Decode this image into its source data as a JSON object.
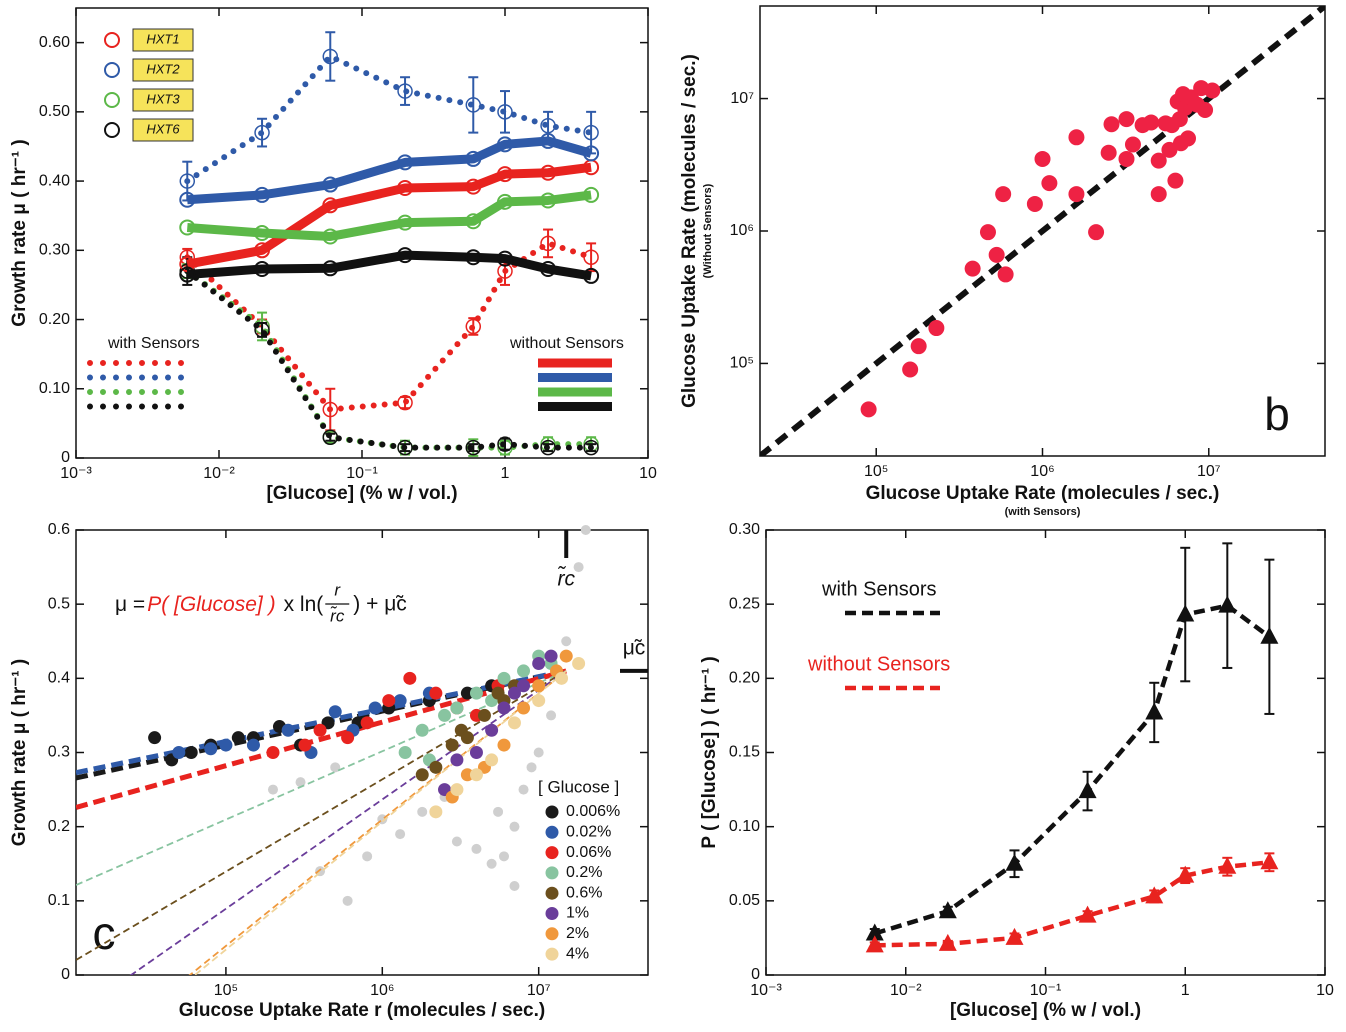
{
  "chart_data": [
    {
      "type": "line",
      "xlabel": "[Glucose] (% w / vol.)",
      "ylabel": "Growth rate μ ( hr⁻¹ )",
      "xscale": "log",
      "xlim": [
        0.001,
        10
      ],
      "xticks": [
        {
          "value": 0.001,
          "label": "10⁻³"
        },
        {
          "value": 0.01,
          "label": "10⁻²"
        },
        {
          "value": 0.1,
          "label": "10⁻¹"
        },
        1,
        10
      ],
      "ylim": [
        0,
        0.65
      ],
      "yticks": [
        0,
        {
          "value": 0.1,
          "label": "0.10"
        },
        {
          "value": 0.2,
          "label": "0.20"
        },
        {
          "value": 0.3,
          "label": "0.30"
        },
        {
          "value": 0.4,
          "label": "0.40"
        },
        {
          "value": 0.5,
          "label": "0.50"
        },
        {
          "value": 0.6,
          "label": "0.60"
        }
      ],
      "x": [
        0.006,
        0.02,
        0.06,
        0.2,
        0.6,
        1,
        2,
        4
      ],
      "legend_groups": {
        "with": "with Sensors",
        "without": "without Sensors"
      },
      "series": [
        {
          "name": "HXT1",
          "color": "#e8231f",
          "with_sensors": {
            "values": [
              0.29,
              0.19,
              0.07,
              0.08,
              0.19,
              0.27,
              0.31,
              0.29
            ],
            "errors": [
              0.012,
              0.01,
              0.03,
              0.008,
              0.012,
              0.02,
              0.02,
              0.02
            ]
          },
          "without_sensors": {
            "values": [
              0.28,
              0.3,
              0.365,
              0.39,
              0.392,
              0.41,
              0.412,
              0.42
            ]
          }
        },
        {
          "name": "HXT2",
          "color": "#2f5aa8",
          "with_sensors": {
            "values": [
              0.4,
              0.47,
              0.58,
              0.53,
              0.51,
              0.5,
              0.48,
              0.47
            ],
            "errors": [
              0.028,
              0.02,
              0.035,
              0.02,
              0.04,
              0.03,
              0.02,
              0.03
            ]
          },
          "without_sensors": {
            "values": [
              0.373,
              0.38,
              0.395,
              0.427,
              0.432,
              0.453,
              0.458,
              0.44
            ]
          }
        },
        {
          "name": "HXT3",
          "color": "#5cb848",
          "with_sensors": {
            "values": [
              0.27,
              0.19,
              0.03,
              0.015,
              0.015,
              0.015,
              0.02,
              0.02
            ],
            "errors": [
              0.01,
              0.02,
              0.008,
              0.01,
              0.012,
              0.01,
              0.01,
              0.01
            ]
          },
          "without_sensors": {
            "values": [
              0.333,
              0.325,
              0.32,
              0.34,
              0.342,
              0.37,
              0.372,
              0.38
            ]
          }
        },
        {
          "name": "HXT6",
          "color": "#111111",
          "with_sensors": {
            "values": [
              0.27,
              0.185,
              0.03,
              0.015,
              0.015,
              0.02,
              0.015,
              0.015
            ],
            "errors": [
              0.02,
              0.01,
              0.005,
              0.005,
              0.005,
              0.008,
              0.005,
              0.005
            ]
          },
          "without_sensors": {
            "values": [
              0.265,
              0.273,
              0.274,
              0.293,
              0.29,
              0.288,
              0.273,
              0.263
            ]
          }
        }
      ]
    },
    {
      "type": "scatter",
      "panel_letter": "b",
      "xlabel": "Glucose Uptake Rate (molecules / sec.)",
      "xsublabel": "(with Sensors)",
      "ylabel": "Glucose Uptake Rate (molecules / sec.)",
      "ysublabel": "(Without Sensors)",
      "xscale": "log",
      "yscale": "log",
      "xlim": [
        20000,
        50000000
      ],
      "ylim": [
        20000,
        50000000
      ],
      "xticks": [
        {
          "value": 100000,
          "label": "10⁵"
        },
        {
          "value": 1000000,
          "label": "10⁶"
        },
        {
          "value": 10000000,
          "label": "10⁷"
        }
      ],
      "yticks": [
        {
          "value": 100000,
          "label": "10⁵"
        },
        {
          "value": 1000000,
          "label": "10⁶"
        },
        {
          "value": 10000000,
          "label": "10⁷"
        }
      ],
      "diagonal": true,
      "color": "#ee2244",
      "x": [
        90000,
        160000,
        180000,
        230000,
        380000,
        470000,
        530000,
        600000,
        580000,
        900000,
        1000000,
        1100000,
        1600000,
        1600000,
        2100000,
        2600000,
        2500000,
        3200000,
        3200000,
        3500000,
        4000000,
        4500000,
        5000000,
        5000000,
        5500000,
        5800000,
        6000000,
        6300000,
        6500000,
        6800000,
        7000000,
        7200000,
        7500000,
        7800000,
        8500000,
        9000000,
        9500000,
        10500000,
        6700000
      ],
      "y": [
        45000,
        90000,
        135000,
        185000,
        520000,
        980000,
        660000,
        470000,
        1900000,
        1600000,
        3500000,
        2300000,
        5100000,
        1900000,
        980000,
        6400000,
        3900000,
        7000000,
        3500000,
        4500000,
        6300000,
        6600000,
        3400000,
        1900000,
        6500000,
        4100000,
        6300000,
        2400000,
        9500000,
        4600000,
        10800000,
        8500000,
        5000000,
        10200000,
        9000000,
        12000000,
        8200000,
        11500000,
        7000000
      ]
    },
    {
      "type": "scatter",
      "panel_letter": "c",
      "xlabel": "Glucose Uptake Rate r (molecules / sec.)",
      "ylabel": "Growth rate μ ( hr⁻¹ )",
      "xscale": "log",
      "xlim": [
        11000,
        50000000
      ],
      "xticks": [
        {
          "value": 100000,
          "label": "10⁵"
        },
        {
          "value": 1000000,
          "label": "10⁶"
        },
        {
          "value": 10000000,
          "label": "10⁷"
        }
      ],
      "ylim": [
        0,
        0.6
      ],
      "yticks": [
        0,
        0.1,
        0.2,
        0.3,
        0.4,
        0.5,
        0.6
      ],
      "eq_lhs": "μ =",
      "eq_p": "P( [Glucose] )",
      "eq_ln": "x ln(",
      "eq_num": "r",
      "eq_den": "r̃c",
      "eq_rhs": ") + μ̃c",
      "rc": {
        "value": 15000000,
        "label": "r̃c"
      },
      "muc": {
        "value": 0.41,
        "label": "μ̃c"
      },
      "legend_title": "[ Glucose ]",
      "background": {
        "color": "#cfcfcf",
        "x": [
          400000,
          600000,
          800000,
          1000000,
          1300000,
          1800000,
          2500000,
          3000000,
          4000000,
          5000000,
          6000000,
          7000000,
          8000000,
          9000000,
          10000000,
          12000000,
          15000000,
          18000000,
          20000000,
          300000,
          200000,
          500000,
          7000000,
          5500000
        ],
        "y": [
          0.14,
          0.1,
          0.16,
          0.21,
          0.19,
          0.22,
          0.24,
          0.18,
          0.17,
          0.15,
          0.16,
          0.2,
          0.25,
          0.28,
          0.3,
          0.35,
          0.45,
          0.55,
          0.6,
          0.26,
          0.25,
          0.28,
          0.12,
          0.22
        ]
      },
      "series": [
        {
          "name": "0.006%",
          "color": "#1a1a1a",
          "fit_P": 0.02,
          "x": [
            35000,
            45000,
            60000,
            80000,
            120000,
            150000,
            220000,
            300000,
            450000,
            700000,
            1100000,
            2000000,
            3500000,
            5000000
          ],
          "y": [
            0.32,
            0.29,
            0.3,
            0.31,
            0.32,
            0.32,
            0.335,
            0.31,
            0.34,
            0.34,
            0.36,
            0.37,
            0.38,
            0.39
          ]
        },
        {
          "name": "0.02%",
          "color": "#2f5aa8",
          "fit_P": 0.019,
          "x": [
            50000,
            80000,
            100000,
            150000,
            250000,
            350000,
            500000,
            650000,
            900000,
            1300000,
            2000000
          ],
          "y": [
            0.3,
            0.305,
            0.31,
            0.31,
            0.33,
            0.3,
            0.355,
            0.33,
            0.36,
            0.37,
            0.38
          ]
        },
        {
          "name": "0.06%",
          "color": "#e8231f",
          "fit_P": 0.0255,
          "x": [
            200000,
            320000,
            400000,
            600000,
            800000,
            1100000,
            1500000,
            2200000,
            3000000,
            4000000,
            5500000
          ],
          "y": [
            0.3,
            0.31,
            0.33,
            0.32,
            0.34,
            0.37,
            0.4,
            0.38,
            0.36,
            0.35,
            0.39
          ]
        },
        {
          "name": "0.2%",
          "color": "#88c4a0",
          "fit_P": 0.04,
          "x": [
            1400000,
            1800000,
            2000000,
            2500000,
            3000000,
            4000000,
            5000000,
            6000000,
            8000000,
            10000000,
            12000000
          ],
          "y": [
            0.3,
            0.33,
            0.29,
            0.35,
            0.36,
            0.38,
            0.37,
            0.4,
            0.41,
            0.43,
            0.42
          ]
        },
        {
          "name": "0.6%",
          "color": "#6b4f1d",
          "fit_P": 0.054,
          "x": [
            1800000,
            2200000,
            2800000,
            3200000,
            3500000,
            4500000,
            5500000,
            6000000,
            7000000
          ],
          "y": [
            0.27,
            0.28,
            0.31,
            0.33,
            0.32,
            0.35,
            0.38,
            0.37,
            0.39
          ]
        },
        {
          "name": "1%",
          "color": "#6a3d9a",
          "fit_P": 0.064,
          "x": [
            2500000,
            3000000,
            4000000,
            5000000,
            6000000,
            7000000,
            8000000,
            10000000,
            12000000
          ],
          "y": [
            0.25,
            0.29,
            0.3,
            0.33,
            0.36,
            0.38,
            0.39,
            0.42,
            0.43
          ]
        },
        {
          "name": "2%",
          "color": "#f0983c",
          "fit_P": 0.074,
          "x": [
            2800000,
            3500000,
            4500000,
            6000000,
            8000000,
            10000000,
            13000000,
            15000000
          ],
          "y": [
            0.24,
            0.27,
            0.28,
            0.31,
            0.36,
            0.39,
            0.41,
            0.43
          ]
        },
        {
          "name": "4%",
          "color": "#f0d49a",
          "fit_P": 0.075,
          "x": [
            2200000,
            3000000,
            4000000,
            5000000,
            7000000,
            10000000,
            14000000,
            18000000
          ],
          "y": [
            0.22,
            0.25,
            0.27,
            0.29,
            0.34,
            0.37,
            0.4,
            0.42
          ]
        }
      ]
    },
    {
      "type": "line",
      "xlabel": "[Glucose] (% w / vol.)",
      "ylabel": "P ( [Glucose] ) ( hr⁻¹ )",
      "xscale": "log",
      "xlim": [
        0.001,
        10
      ],
      "xticks": [
        {
          "value": 0.001,
          "label": "10⁻³"
        },
        {
          "value": 0.01,
          "label": "10⁻²"
        },
        {
          "value": 0.1,
          "label": "10⁻¹"
        },
        1,
        10
      ],
      "ylim": [
        0,
        0.3
      ],
      "yticks": [
        0,
        0.05,
        {
          "value": 0.1,
          "label": "0.10"
        },
        0.15,
        {
          "value": 0.2,
          "label": "0.20"
        },
        0.25,
        {
          "value": 0.3,
          "label": "0.30"
        }
      ],
      "x": [
        0.006,
        0.02,
        0.06,
        0.2,
        0.6,
        1,
        2,
        4
      ],
      "series": [
        {
          "name": "with Sensors",
          "color": "#111111",
          "values": [
            0.028,
            0.043,
            0.075,
            0.124,
            0.177,
            0.243,
            0.249,
            0.228
          ],
          "errors": [
            0.003,
            0.003,
            0.009,
            0.013,
            0.02,
            0.045,
            0.042,
            0.052
          ]
        },
        {
          "name": "without Sensors",
          "color": "#e8231f",
          "values": [
            0.02,
            0.021,
            0.025,
            0.04,
            0.053,
            0.067,
            0.073,
            0.076
          ],
          "errors": [
            0.002,
            0.002,
            0.003,
            0.003,
            0.004,
            0.005,
            0.006,
            0.006
          ]
        }
      ]
    }
  ]
}
